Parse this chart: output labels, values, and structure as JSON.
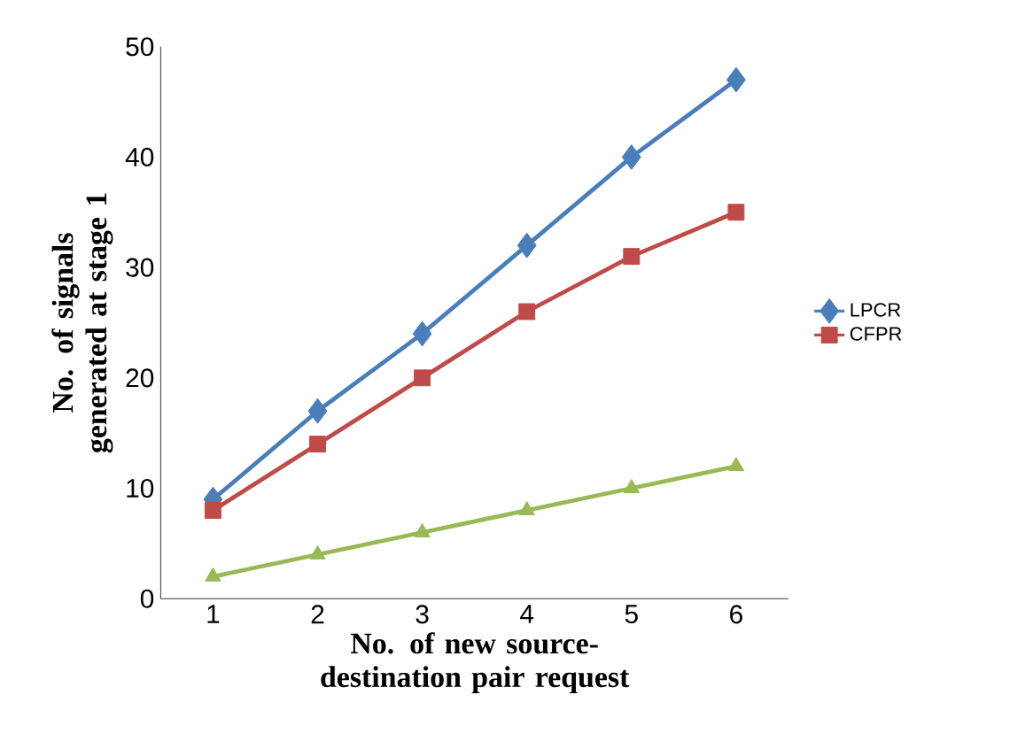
{
  "chart_data": {
    "type": "line",
    "xlabel": "No. of new source-destination pair request",
    "ylabel": "No. of signals generated at stage 1",
    "categories": [
      "1",
      "2",
      "3",
      "4",
      "5",
      "6"
    ],
    "series": [
      {
        "name": "LPCR",
        "color": "#4a7ebb",
        "marker": "diamond",
        "values": [
          9,
          17,
          24,
          32,
          40,
          47
        ]
      },
      {
        "name": "CFPR",
        "color": "#be4b48",
        "marker": "square",
        "values": [
          8,
          14,
          20,
          26,
          31,
          35
        ]
      },
      {
        "color": "#98b954",
        "marker": "triangle",
        "values": [
          2,
          4,
          6,
          8,
          10,
          12
        ]
      }
    ],
    "ylim": [
      0,
      50
    ],
    "yticks": [
      0,
      10,
      20,
      30,
      40,
      50
    ],
    "grid": false,
    "legend": "right"
  }
}
